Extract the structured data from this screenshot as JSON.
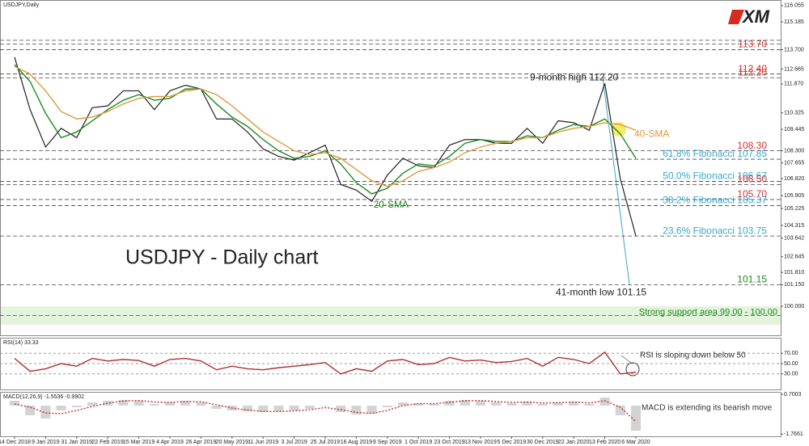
{
  "chart_data": [
    {
      "type": "line",
      "title": "USDJPY,Daily",
      "subtitle": "USDJPY - Daily chart",
      "logo": "XM",
      "categories": [
        "14 Dec 2018",
        null,
        "9 Jan 2019",
        null,
        "31 Jan 2019",
        null,
        "22 Feb 2019",
        null,
        "15 Mar 2019",
        null,
        "4 Apr 2019",
        null,
        "26 Apr 2019",
        null,
        "20 May 2019",
        null,
        "11 Jun 2019",
        null,
        "3 Jul 2019",
        null,
        "25 Jul 2019",
        null,
        "16 Aug 2019",
        null,
        "9 Sep 2019",
        null,
        "1 Oct 2019",
        null,
        "23 Oct 2019",
        null,
        "13 Nov 2019",
        null,
        "5 Dec 2019",
        null,
        "30 Dec 2019",
        null,
        "22 Jan 2020",
        null,
        "13 Feb 2020",
        null,
        "6 Mar 2020"
      ],
      "series": [
        {
          "color": "#222222",
          "values": [
            113.3,
            110.5,
            108.5,
            109.5,
            109.0,
            110.6,
            110.7,
            111.5,
            111.5,
            110.5,
            111.5,
            111.8,
            111.6,
            110.0,
            110.0,
            109.3,
            108.4,
            108.0,
            107.8,
            108.2,
            108.6,
            106.5,
            106.2,
            105.6,
            107.0,
            107.9,
            107.5,
            107.4,
            108.6,
            108.9,
            108.9,
            108.7,
            108.7,
            109.5,
            108.7,
            109.9,
            109.8,
            109.4,
            111.9,
            106.8,
            103.75
          ]
        },
        {
          "name": "20-SMA",
          "color": "#1f8a1f",
          "values": [
            112.9,
            112.0,
            110.3,
            109.0,
            109.3,
            109.9,
            110.5,
            111.0,
            111.3,
            111.0,
            111.1,
            111.6,
            111.6,
            110.8,
            110.1,
            109.6,
            108.9,
            108.3,
            107.9,
            108.0,
            108.3,
            107.6,
            106.6,
            106.0,
            106.3,
            107.1,
            107.6,
            107.5,
            108.0,
            108.7,
            108.9,
            108.8,
            108.8,
            109.1,
            109.0,
            109.4,
            109.7,
            109.6,
            110.0,
            109.2,
            107.9
          ]
        },
        {
          "name": "40-SMA",
          "color": "#dc9a3c",
          "values": [
            112.8,
            112.4,
            111.5,
            110.4,
            110.0,
            110.1,
            110.4,
            110.8,
            111.1,
            111.2,
            111.2,
            111.5,
            111.6,
            111.3,
            110.7,
            110.0,
            109.3,
            108.8,
            108.3,
            108.1,
            108.2,
            107.9,
            107.3,
            106.7,
            106.4,
            106.7,
            107.2,
            107.4,
            107.7,
            108.2,
            108.5,
            108.7,
            108.8,
            109.0,
            109.0,
            109.3,
            109.5,
            109.6,
            109.8,
            109.7,
            109.4
          ]
        }
      ],
      "ylim": [
        98.45,
        116.35
      ],
      "yticks": [
        116.055,
        115.185,
        {
          "value": 113.7,
          "label": "113.700"
        },
        112.665,
        {
          "value": 111.87,
          "label": "111.870"
        },
        110.325,
        109.445,
        {
          "value": 108.3,
          "label": "108.300"
        },
        107.655,
        {
          "value": 106.82,
          "label": "106.820"
        },
        105.905,
        105.225,
        104.315,
        103.642,
        102.645,
        {
          "value": 101.81,
          "label": "101.810"
        },
        {
          "value": 101.15,
          "label": "101.150"
        },
        {
          "value": 100,
          "label": "100.000"
        }
      ],
      "levels": [
        {
          "value": 114.2
        },
        {
          "value": 114.0
        },
        {
          "value": 113.7,
          "label": "113.70",
          "color": "#d83030"
        },
        {
          "value": 112.4,
          "label": "112.40",
          "color": "#d83030"
        },
        {
          "value": 112.2,
          "label": "112.20",
          "color": "#d83030"
        },
        {
          "value": 108.3,
          "label": "108.30",
          "color": "#d83030"
        },
        {
          "value": 107.85,
          "label": "61.8% Fibonacci 107.85",
          "color": "#3aa6c8"
        },
        {
          "value": 106.67,
          "label": "50.0% Fibonacci 106.67",
          "color": "#3aa6c8"
        },
        {
          "value": 106.5,
          "label": "106.50",
          "color": "#d83030"
        },
        {
          "value": 105.7,
          "label": "105.70",
          "color": "#d83030"
        },
        {
          "value": 105.37,
          "label": "38.2% Fibonacci 105.37",
          "color": "#3aa6c8"
        },
        {
          "value": 103.75,
          "label": "23.6% Fibonacci 103.75",
          "color": "#3aa6c8"
        },
        {
          "value": 101.15,
          "label": "101.15",
          "color": "#1a8a1a"
        },
        {
          "value": 99.5
        }
      ],
      "support_area": {
        "range": [
          99,
          100
        ],
        "label": "Strong support area 99.00 - 100.00",
        "color": "#e3f3dc"
      },
      "annotations": [
        "9-month high 112.20",
        "41-month low 101.15"
      ]
    },
    {
      "type": "line",
      "title": "RSI(14) 33.33",
      "series": [
        {
          "color": "#b03030",
          "values": [
            60,
            35,
            40,
            50,
            45,
            60,
            55,
            58,
            56,
            45,
            58,
            60,
            55,
            38,
            45,
            40,
            38,
            42,
            45,
            48,
            52,
            30,
            40,
            35,
            55,
            58,
            48,
            50,
            62,
            55,
            57,
            52,
            54,
            60,
            45,
            62,
            58,
            50,
            72,
            30,
            33.33
          ]
        }
      ],
      "ylim": [
        0,
        100
      ],
      "yticks": [
        {
          "value": 70,
          "label": "70.00"
        },
        {
          "value": 50,
          "label": "50.00"
        },
        {
          "value": 30,
          "label": "30.00"
        }
      ],
      "note": "RSI is sloping down below 50"
    },
    {
      "type": "bar",
      "title": "MACD(12,26,9) -1.5536 -0.9902",
      "values": [
        0.3,
        -0.6,
        -0.8,
        -0.3,
        -0.1,
        0.2,
        0.3,
        0.35,
        0.3,
        0.1,
        0.2,
        0.3,
        0.2,
        -0.2,
        -0.3,
        -0.35,
        -0.4,
        -0.35,
        -0.3,
        -0.2,
        0.0,
        -0.4,
        -0.55,
        -0.5,
        -0.1,
        0.2,
        0.15,
        0.1,
        0.3,
        0.35,
        0.3,
        0.2,
        0.15,
        0.25,
        0.1,
        0.2,
        0.25,
        0.1,
        0.5,
        -0.6,
        -1.5536
      ],
      "color": "#b5b5b5",
      "series": [
        {
          "color": "#c03030",
          "values": [
            0.1,
            -0.1,
            -0.45,
            -0.5,
            -0.3,
            -0.05,
            0.15,
            0.28,
            0.32,
            0.22,
            0.2,
            0.25,
            0.24,
            0.05,
            -0.15,
            -0.28,
            -0.36,
            -0.37,
            -0.33,
            -0.26,
            -0.12,
            -0.25,
            -0.42,
            -0.48,
            -0.3,
            0.0,
            0.12,
            0.12,
            0.2,
            0.3,
            0.31,
            0.25,
            0.2,
            0.22,
            0.16,
            0.18,
            0.22,
            0.16,
            0.3,
            -0.1,
            -0.9902
          ]
        }
      ],
      "ylim": [
        -1.9,
        0.85
      ],
      "yticks": [
        0.7003,
        -1.7661
      ],
      "note": "MACD is extending its bearish move"
    }
  ]
}
